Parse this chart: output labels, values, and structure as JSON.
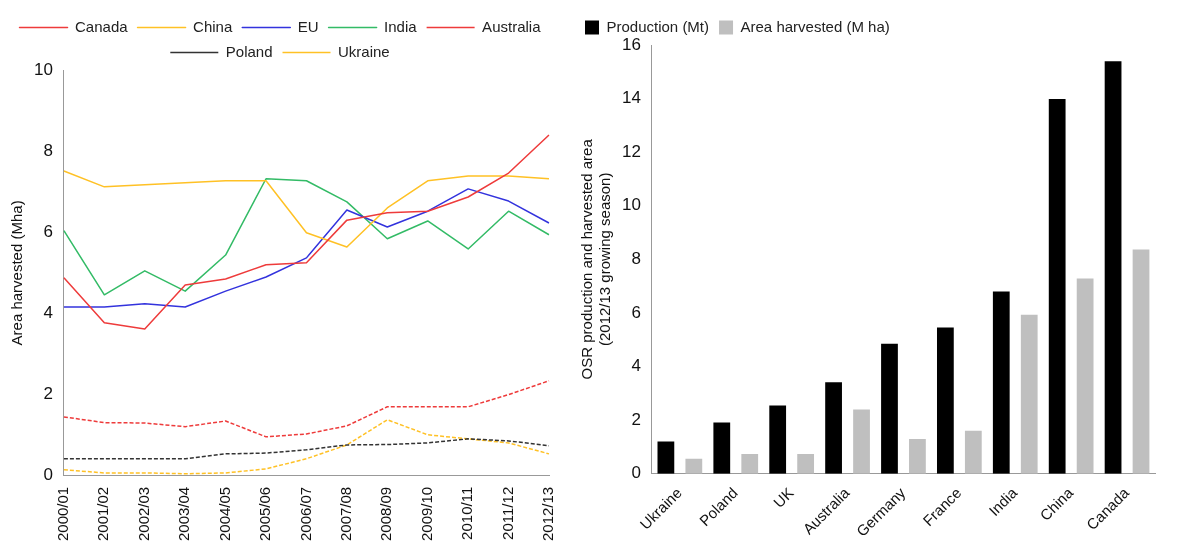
{
  "chart_data": [
    {
      "type": "line",
      "ylabel": "Area harvested (Mha)",
      "categories": [
        "2000/01",
        "2001/02",
        "2002/03",
        "2003/04",
        "2004/05",
        "2005/06",
        "2006/07",
        "2007/08",
        "2008/09",
        "2009/10",
        "2010/11",
        "2011/12",
        "2012/13"
      ],
      "series": [
        {
          "name": "Canada",
          "color": "#ee3b3b",
          "line_style": "solid",
          "values": [
            4.88,
            3.77,
            3.62,
            4.7,
            4.85,
            5.2,
            5.25,
            6.3,
            6.48,
            6.52,
            6.87,
            7.46,
            8.4
          ]
        },
        {
          "name": "China",
          "color": "#ffc125",
          "line_style": "solid",
          "values": [
            7.51,
            7.12,
            7.17,
            7.22,
            7.27,
            7.27,
            5.99,
            5.64,
            6.6,
            7.27,
            7.39,
            7.39,
            7.32
          ]
        },
        {
          "name": "EU",
          "color": "#3333dd",
          "line_style": "solid",
          "values": [
            4.16,
            4.16,
            4.24,
            4.16,
            4.55,
            4.9,
            5.37,
            6.55,
            6.13,
            6.52,
            7.07,
            6.77,
            6.23
          ]
        },
        {
          "name": "India",
          "color": "#33bb66",
          "line_style": "solid",
          "values": [
            6.04,
            4.46,
            5.05,
            4.55,
            5.44,
            7.32,
            7.27,
            6.75,
            5.84,
            6.28,
            5.59,
            6.52,
            5.94
          ]
        },
        {
          "name": "Australia",
          "color": "#ee3b3b",
          "line_style": "dashed",
          "values": [
            1.45,
            1.31,
            1.3,
            1.21,
            1.35,
            0.96,
            1.03,
            1.23,
            1.7,
            1.7,
            1.7,
            2.0,
            2.34
          ]
        },
        {
          "name": "Poland",
          "color": "#333333",
          "line_style": "dashed",
          "values": [
            0.42,
            0.42,
            0.42,
            0.42,
            0.54,
            0.56,
            0.64,
            0.76,
            0.77,
            0.81,
            0.91,
            0.86,
            0.74
          ]
        },
        {
          "name": "Ukraine",
          "color": "#ffc125",
          "line_style": "dashed",
          "values": [
            0.15,
            0.07,
            0.07,
            0.05,
            0.07,
            0.17,
            0.42,
            0.76,
            1.38,
            1.01,
            0.91,
            0.81,
            0.54
          ]
        }
      ],
      "ylim": [
        0,
        10
      ],
      "yticks": [
        0,
        2,
        4,
        6,
        8,
        10
      ],
      "grid": false,
      "legend": "top",
      "marker": "none"
    },
    {
      "type": "bar",
      "ylabel": "OSR production and harvested area\n(2012/13 growing season)",
      "categories": [
        "Ukraine",
        "Poland",
        "UK",
        "Australia",
        "Germany",
        "France",
        "India",
        "China",
        "Canada"
      ],
      "series": [
        {
          "name": "Production (Mt)",
          "color": "#000000",
          "values": [
            1.2,
            1.91,
            2.54,
            3.41,
            4.85,
            5.46,
            6.8,
            13.98,
            15.39
          ]
        },
        {
          "name": "Area harvested (M ha)",
          "color": "#bfbfbf",
          "values": [
            0.56,
            0.73,
            0.73,
            2.39,
            1.29,
            1.6,
            5.93,
            7.28,
            8.37
          ]
        }
      ],
      "ylim": [
        0,
        16
      ],
      "yticks": [
        0,
        2,
        4,
        6,
        8,
        10,
        12,
        14,
        16
      ],
      "grid": false,
      "legend": "top left"
    }
  ]
}
